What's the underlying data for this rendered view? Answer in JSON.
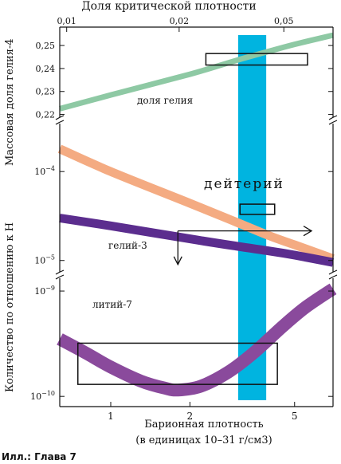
{
  "chart_data": {
    "type": "line",
    "title": "Доля критической плотности",
    "xlabel_line1": "Барионная плотность",
    "xlabel_line2": "(в единицах 10–31 г/см3)",
    "ylabel_abundance": "Количество по отношению к H",
    "ylabel_helium": "Массовая доля гелия-4",
    "x_scale": "log",
    "x_range": [
      0.64,
      7.0
    ],
    "x_ticks": [
      {
        "value": 1,
        "label": "1"
      },
      {
        "value": 2,
        "label": "2"
      },
      {
        "value": 5,
        "label": "5"
      }
    ],
    "top_ticks": [
      {
        "value": 0.01,
        "label": "0,01"
      },
      {
        "value": 0.02,
        "label": "0,02"
      },
      {
        "value": 0.05,
        "label": "0,05"
      }
    ],
    "top_tick_positions": [
      0.68,
      1.82,
      4.55
    ],
    "panels": {
      "helium": {
        "y_range": [
          0.215,
          0.258
        ],
        "ticks": [
          {
            "value": 0.22,
            "label": "0,22"
          },
          {
            "value": 0.23,
            "label": "0,23"
          },
          {
            "value": 0.24,
            "label": "0,24"
          },
          {
            "value": 0.25,
            "label": "0,25"
          }
        ]
      },
      "deuterium": {
        "y_scale": "log",
        "y_range": [
          7e-06,
          0.0003
        ],
        "ticks": [
          {
            "value": 0.0001,
            "label": "10",
            "exp": "−4"
          },
          {
            "value": 1e-05,
            "label": "10",
            "exp": "−5"
          }
        ]
      },
      "lithium": {
        "y_scale": "log",
        "y_range": [
          8e-11,
          1.3e-09
        ],
        "ticks": [
          {
            "value": 1e-09,
            "label": "10",
            "exp": "−9"
          },
          {
            "value": 1e-10,
            "label": "10",
            "exp": "−10"
          }
        ]
      }
    },
    "series": [
      {
        "name": "доля гелия",
        "panel": "helium",
        "color": "#8ec9a4",
        "x": [
          0.64,
          1.0,
          2.0,
          3.0,
          4.0,
          5.0,
          7.0
        ],
        "y": [
          0.2225,
          0.2285,
          0.2375,
          0.2435,
          0.2475,
          0.2505,
          0.2545
        ]
      },
      {
        "name": "дейтерий",
        "panel": "deuterium",
        "color": "#f4ab82",
        "x": [
          0.64,
          1.0,
          2.0,
          3.0,
          4.0,
          5.0,
          7.0
        ],
        "y": [
          0.00018,
          0.0001,
          4.4e-05,
          2.7e-05,
          1.9e-05,
          1.5e-05,
          1.05e-05
        ]
      },
      {
        "name": "гелий-3",
        "panel": "deuterium",
        "color": "#5b2d8e",
        "x": [
          0.64,
          1.0,
          2.0,
          3.0,
          4.0,
          5.0,
          7.0
        ],
        "y": [
          3e-05,
          2.45e-05,
          1.75e-05,
          1.45e-05,
          1.28e-05,
          1.15e-05,
          9.5e-06
        ]
      },
      {
        "name": "литий-7",
        "panel": "lithium",
        "color": "#8a4a9c",
        "x": [
          0.64,
          0.8,
          1.0,
          1.3,
          1.6,
          1.8,
          2.2,
          2.8,
          3.5,
          4.5,
          5.5,
          7.0
        ],
        "y": [
          3.5e-10,
          2.6e-10,
          1.9e-10,
          1.4e-10,
          1.2e-10,
          1.15e-10,
          1.25e-10,
          1.7e-10,
          2.6e-10,
          4.6e-10,
          7e-10,
          1.05e-09
        ]
      }
    ],
    "observed_band": {
      "x_range": [
        3.05,
        3.9
      ],
      "color": "#00b4e0"
    },
    "boxes": [
      {
        "panel": "helium",
        "x": [
          2.3,
          5.6
        ],
        "y": [
          0.2415,
          0.2465
        ]
      },
      {
        "panel": "deuterium",
        "x": [
          3.1,
          4.2
        ],
        "y": [
          3.3e-05,
          4.3e-05
        ]
      },
      {
        "panel": "lithium",
        "x": [
          0.75,
          4.3
        ],
        "y": [
          1.3e-10,
          3.2e-10
        ]
      }
    ],
    "limits": [
      {
        "panel": "deuterium",
        "type": "lower-arrow",
        "x": [
          1.8,
          5.8
        ],
        "y": 2.15e-05,
        "drop_y": 9e-06
      }
    ]
  },
  "figure_caption": "Илл.: Глава 7"
}
